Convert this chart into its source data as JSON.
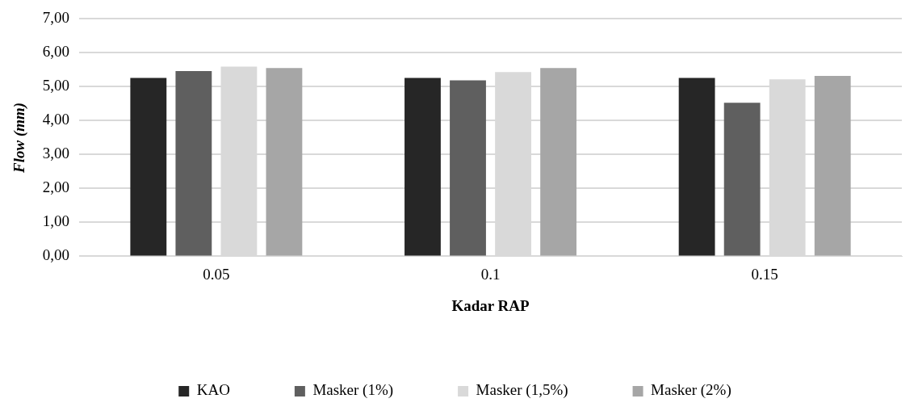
{
  "chart_data": {
    "type": "bar",
    "xlabel": "Kadar RAP",
    "ylabel": "Flow (mm)",
    "categories": [
      "0.05",
      "0.1",
      "0.15"
    ],
    "series": [
      {
        "name": "KAO",
        "color": "#262626",
        "values": [
          5.26,
          5.26,
          5.26
        ]
      },
      {
        "name": "Masker (1%)",
        "color": "#5f5f5f",
        "values": [
          5.46,
          5.19,
          4.53
        ]
      },
      {
        "name": "Masker (1,5%)",
        "color": "#d9d9d9",
        "values": [
          5.59,
          5.43,
          5.22
        ]
      },
      {
        "name": "Masker (2%)",
        "color": "#a6a6a6",
        "values": [
          5.55,
          5.55,
          5.32
        ]
      }
    ],
    "ylim": [
      0,
      7
    ],
    "yticks": [
      {
        "value": 0,
        "label": "0,00"
      },
      {
        "value": 1,
        "label": "1,00"
      },
      {
        "value": 2,
        "label": "2,00"
      },
      {
        "value": 3,
        "label": "3,00"
      },
      {
        "value": 4,
        "label": "4,00"
      },
      {
        "value": 5,
        "label": "5,00"
      },
      {
        "value": 6,
        "label": "6,00"
      },
      {
        "value": 7,
        "label": "7,00"
      }
    ],
    "grid": "y",
    "legend": "bottom"
  }
}
